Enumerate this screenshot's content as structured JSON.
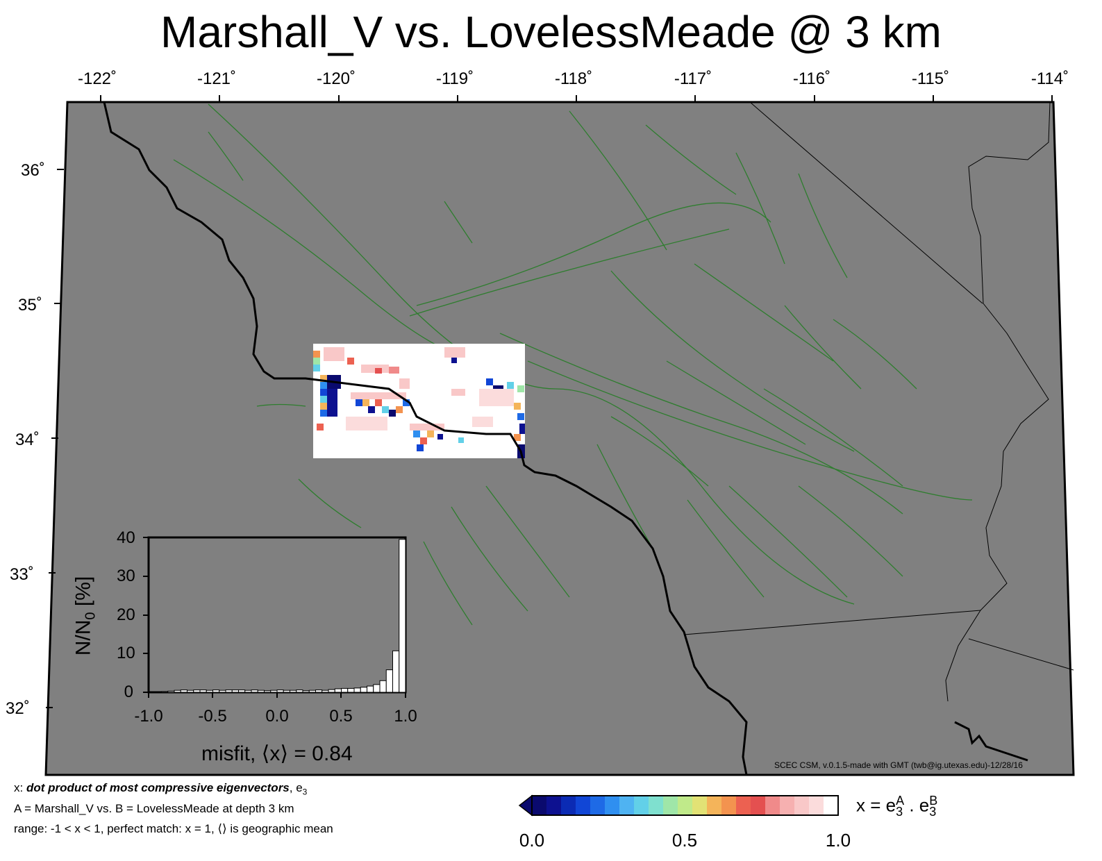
{
  "title": "Marshall_V vs. LovelessMeade @ 3 km",
  "map": {
    "lon_labels": [
      "-122˚",
      "-121˚",
      "-120˚",
      "-119˚",
      "-118˚",
      "-117˚",
      "-116˚",
      "-115˚",
      "-114˚"
    ],
    "lat_labels": [
      "36˚",
      "35˚",
      "34˚",
      "33˚",
      "32˚"
    ],
    "colors": {
      "land": "#808080",
      "faults": "#2e7d2e",
      "coastline": "#000000",
      "borders": "#000000"
    },
    "credit": "SCEC CSM, v.0.1.5-made with GMT (twb@ig.utexas.edu)-12/28/16"
  },
  "histogram": {
    "y_ticks": [
      "40",
      "30",
      "20",
      "10",
      "0"
    ],
    "x_ticks": [
      "-1.0",
      "-0.5",
      "0.0",
      "0.5",
      "1.0"
    ],
    "ylabel_main": "N/N",
    "ylabel_sub": "0",
    "ylabel_tail": " [%]",
    "xlabel": "misfit, ⟨x⟩ = 0.84",
    "bin_values": [
      0,
      0,
      0.2,
      0.3,
      0.5,
      0.6,
      0.5,
      0.6,
      0.6,
      0.5,
      0.6,
      0.5,
      0.6,
      0.6,
      0.6,
      0.5,
      0.6,
      0.5,
      0.4,
      0.5,
      0.6,
      0.5,
      0.5,
      0.6,
      0.4,
      0.5,
      0.6,
      0.5,
      0.7,
      0.9,
      1.0,
      1.0,
      1.1,
      1.3,
      1.6,
      2.0,
      3.0,
      5.8,
      10.7,
      39.5
    ],
    "ylim": [
      0,
      40
    ],
    "xlim": [
      -1.0,
      1.0
    ]
  },
  "legend": {
    "line1_prefix": "x: ",
    "line1_bold": "dot product of most compressive eigenvectors",
    "line1_suffix": ", e",
    "line1_sub": "3",
    "line2": "A = Marshall_V vs.  B = LovelessMeade at depth 3 km",
    "line3": "range: -1 < x < 1, perfect match: x = 1, ⟨⟩ is geographic mean"
  },
  "colorbar": {
    "colors": [
      "#0a0a6e",
      "#0d1190",
      "#0b2bb4",
      "#1146d6",
      "#1e6ae6",
      "#2f8ff0",
      "#4fb3f2",
      "#62d0e8",
      "#7fe0cf",
      "#9fe6a8",
      "#c0ea8a",
      "#e2e275",
      "#f4b45a",
      "#f3934f",
      "#ec6151",
      "#e45050",
      "#f08a8a",
      "#f6b0b0",
      "#f9c8c8",
      "#fbdcdc",
      "#ffffff"
    ],
    "ticks": [
      "0.0",
      "0.5",
      "1.0"
    ],
    "label_main": "x = e",
    "label_sub1": "3",
    "label_sup1": "A",
    "label_mid": " . e",
    "label_sub2": "3",
    "label_sup2": "B"
  }
}
